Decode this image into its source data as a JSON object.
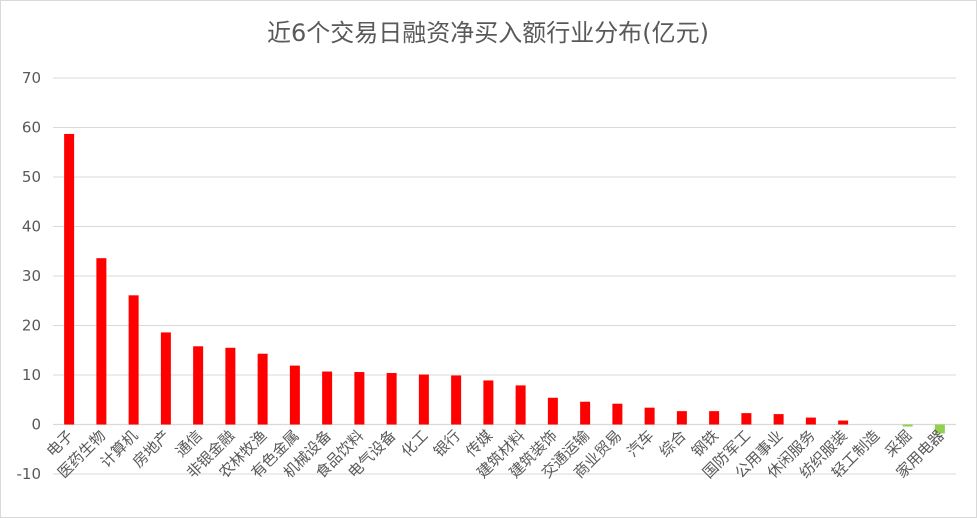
{
  "chart_data": {
    "type": "bar",
    "title": "近6个交易日融资净买入额行业分布(亿元)",
    "xlabel": "",
    "ylabel": "",
    "ylim": [
      -10,
      70
    ],
    "yticks": [
      -10,
      0,
      10,
      20,
      30,
      40,
      50,
      60,
      70
    ],
    "grid": true,
    "legend": "none",
    "colors": {
      "positive": "#ff0000",
      "negative": "#92d050",
      "grid": "#d9d9d9",
      "text": "#595959"
    },
    "categories": [
      "电子",
      "医药生物",
      "计算机",
      "房地产",
      "通信",
      "非银金融",
      "农林牧渔",
      "有色金属",
      "机械设备",
      "食品饮料",
      "电气设备",
      "化工",
      "银行",
      "传媒",
      "建筑材料",
      "建筑装饰",
      "交通运输",
      "商业贸易",
      "汽车",
      "综合",
      "钢铁",
      "国防军工",
      "公用事业",
      "休闲服务",
      "纺织服装",
      "轻工制造",
      "采掘",
      "家用电器"
    ],
    "values": [
      58.7,
      33.6,
      26.1,
      18.6,
      15.8,
      15.5,
      14.3,
      11.9,
      10.7,
      10.6,
      10.4,
      10.1,
      9.9,
      8.9,
      7.9,
      5.4,
      4.6,
      4.2,
      3.4,
      2.7,
      2.7,
      2.3,
      2.1,
      1.4,
      0.8,
      0.0,
      -0.4,
      -1.8
    ]
  }
}
